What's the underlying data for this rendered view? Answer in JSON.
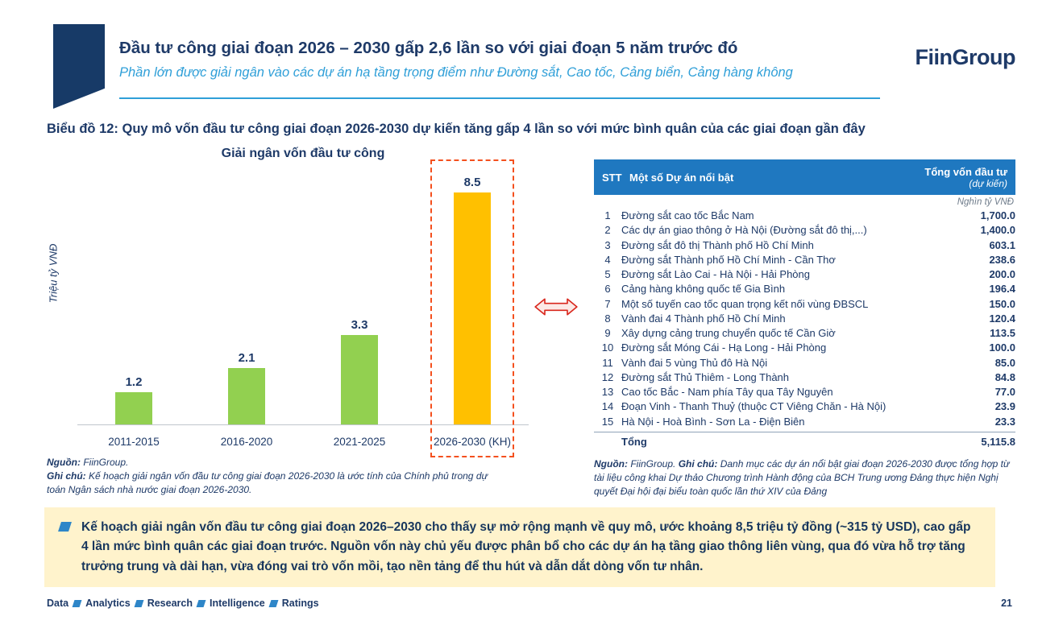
{
  "colors": {
    "navy": "#1E3A68",
    "teal": "#2F9FD8",
    "green_bar": "#92D050",
    "yellow_bar": "#FFC000",
    "highlight_dash": "#F4501E",
    "table_header_bg": "#1F78C0",
    "summary_bg": "#FFF3CC",
    "arrow_red": "#D9261C"
  },
  "header": {
    "title": "Đầu tư công giai đoạn 2026 – 2030 gấp 2,6 lần so với giai đoạn 5 năm trước đó",
    "subtitle": "Phần lớn được giải ngân vào các dự án hạ tầng trọng điểm như Đường sắt, Cao tốc, Cảng biển, Cảng hàng không",
    "logo_text": "FiinGroup"
  },
  "caption": "Biểu đồ 12: Quy mô vốn đầu tư công giai đoạn 2026-2030 dự kiến tăng gấp 4 lần so với mức bình quân của các giai đoạn gần đây",
  "chart_data": {
    "type": "bar",
    "title": "Giải ngân vốn đầu tư công",
    "ylabel": "Triệu tỷ VNĐ",
    "categories": [
      "2011-2015",
      "2016-2020",
      "2021-2025",
      "2026-2030 (KH)"
    ],
    "values": [
      1.2,
      2.1,
      3.3,
      8.5
    ],
    "value_labels": [
      "1.2",
      "2.1",
      "3.3",
      "8.5"
    ],
    "bar_colors": [
      "#92D050",
      "#92D050",
      "#92D050",
      "#FFC000"
    ],
    "highlight_index": 3,
    "ylim": [
      0,
      9
    ],
    "grid": false,
    "legend": "none"
  },
  "table": {
    "col_stt": "STT",
    "col_project": "Một số Dự án nổi bật",
    "col_value_line1": "Tổng vốn đầu tư",
    "col_value_line2": "(dự kiến)",
    "unit_note": "Nghìn tỷ VNĐ",
    "rows": [
      [
        "1",
        "Đường sắt cao tốc Bắc Nam",
        "1,700.0"
      ],
      [
        "2",
        "Các dự án giao thông ở Hà Nội (Đường sắt đô thị,...)",
        "1,400.0"
      ],
      [
        "3",
        "Đường sắt đô thị Thành phố Hồ Chí Minh",
        "603.1"
      ],
      [
        "4",
        "Đường sắt Thành phố Hồ Chí Minh - Cần Thơ",
        "238.6"
      ],
      [
        "5",
        "Đường sắt Lào Cai - Hà Nội - Hải Phòng",
        "200.0"
      ],
      [
        "6",
        "Cảng hàng không quốc tế Gia Bình",
        "196.4"
      ],
      [
        "7",
        "Một số tuyến cao tốc quan trọng kết nối vùng ĐBSCL",
        "150.0"
      ],
      [
        "8",
        "Vành đai 4 Thành phố Hồ Chí Minh",
        "120.4"
      ],
      [
        "9",
        "Xây dựng cảng trung chuyển quốc tế Cần Giờ",
        "113.5"
      ],
      [
        "10",
        "Đường sắt Móng Cái - Hạ Long - Hải Phòng",
        "100.0"
      ],
      [
        "11",
        "Vành đai 5 vùng Thủ đô Hà Nội",
        "85.0"
      ],
      [
        "12",
        "Đường sắt Thủ Thiêm - Long Thành",
        "84.8"
      ],
      [
        "13",
        "Cao tốc Bắc - Nam phía Tây qua Tây Nguyên",
        "77.0"
      ],
      [
        "14",
        "Đoạn Vinh - Thanh Thuỷ (thuộc CT Viêng Chăn - Hà Nội)",
        "23.9"
      ],
      [
        "15",
        "Hà Nội - Hoà Bình - Sơn La - Điện Biên",
        "23.3"
      ]
    ],
    "total_label": "Tổng",
    "total_value": "5,115.8"
  },
  "notes": {
    "left_source_label": "Nguồn:",
    "left_source": " FiinGroup.",
    "left_note_label": "Ghi chú:",
    "left_note": " Kế hoạch giải ngân vốn đầu tư công giai đoạn 2026-2030 là ước tính của Chính phủ trong dự toán Ngân sách nhà nước giai đoạn 2026-2030.",
    "right_source_label": "Nguồn:",
    "right_source": " FiinGroup. ",
    "right_note_label": "Ghi chú:",
    "right_note": " Danh mục các dự án nổi bật giai đoạn 2026-2030 được tổng hợp từ tài liệu công khai Dự thảo Chương trình Hành động của BCH Trung ương Đảng thực hiện Nghị quyết Đại hội đại biểu toàn quốc lần thứ XIV của Đảng"
  },
  "summary": "Kế hoạch giải ngân vốn đầu tư công giai đoạn 2026–2030 cho thấy sự mở rộng mạnh về quy mô, ước khoảng 8,5 triệu tỷ đồng (~315 tỷ USD), cao gấp 4 lần mức bình quân các giai đoạn trước. Nguồn vốn này chủ yếu được phân bổ cho các dự án hạ tầng giao thông liên vùng, qua đó vừa hỗ trợ tăng trưởng trung và dài hạn, vừa đóng vai trò vốn mồi, tạo nền tảng để thu hút và dẫn dắt dòng vốn tư nhân.",
  "footer": {
    "items": [
      "Data",
      "Analytics",
      "Research",
      "Intelligence",
      "Ratings"
    ],
    "page_number": "21"
  }
}
